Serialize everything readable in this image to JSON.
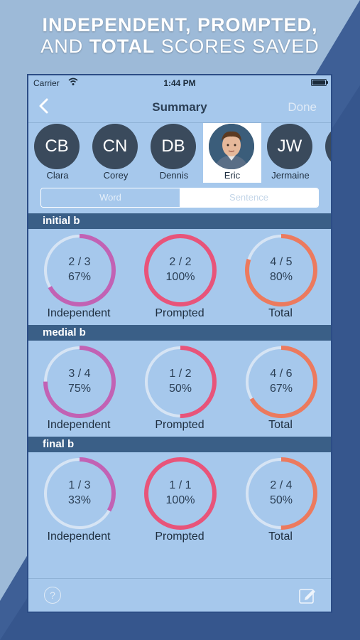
{
  "headline": {
    "line1": "INDEPENDENT, PROMPTED,",
    "line2_pre": "AND ",
    "line2_bold": "TOTAL",
    "line2_post": " SCORES SAVED"
  },
  "statusbar": {
    "carrier": "Carrier",
    "time": "1:44 PM"
  },
  "navbar": {
    "title": "Summary",
    "done": "Done"
  },
  "students": [
    {
      "initials": "CB",
      "name": "Clara"
    },
    {
      "initials": "CN",
      "name": "Corey"
    },
    {
      "initials": "DB",
      "name": "Dennis"
    },
    {
      "initials": "",
      "name": "Eric",
      "selected": true
    },
    {
      "initials": "JW",
      "name": "Jermaine"
    }
  ],
  "segment": {
    "word": "Word",
    "sentence": "Sentence",
    "active": "word"
  },
  "colors": {
    "independent": "#c262b4",
    "prompted": "#e8547a",
    "total": "#ec7a5e",
    "track": "#d6e4f4",
    "header": "#3a5f87"
  },
  "sections": [
    {
      "title": "initial b",
      "scores": [
        {
          "fraction": "2 / 3",
          "percent": "67%",
          "label": "Independent",
          "value": 0.667
        },
        {
          "fraction": "2 / 2",
          "percent": "100%",
          "label": "Prompted",
          "value": 1.0
        },
        {
          "fraction": "4 / 5",
          "percent": "80%",
          "label": "Total",
          "value": 0.8
        }
      ]
    },
    {
      "title": "medial b",
      "scores": [
        {
          "fraction": "3 / 4",
          "percent": "75%",
          "label": "Independent",
          "value": 0.75
        },
        {
          "fraction": "1 / 2",
          "percent": "50%",
          "label": "Prompted",
          "value": 0.5
        },
        {
          "fraction": "4 / 6",
          "percent": "67%",
          "label": "Total",
          "value": 0.667
        }
      ]
    },
    {
      "title": "final b",
      "scores": [
        {
          "fraction": "1 / 3",
          "percent": "33%",
          "label": "Independent",
          "value": 0.333
        },
        {
          "fraction": "1 / 1",
          "percent": "100%",
          "label": "Prompted",
          "value": 1.0
        },
        {
          "fraction": "2 / 4",
          "percent": "50%",
          "label": "Total",
          "value": 0.5
        }
      ]
    }
  ],
  "bottombar": {
    "help": "?"
  }
}
